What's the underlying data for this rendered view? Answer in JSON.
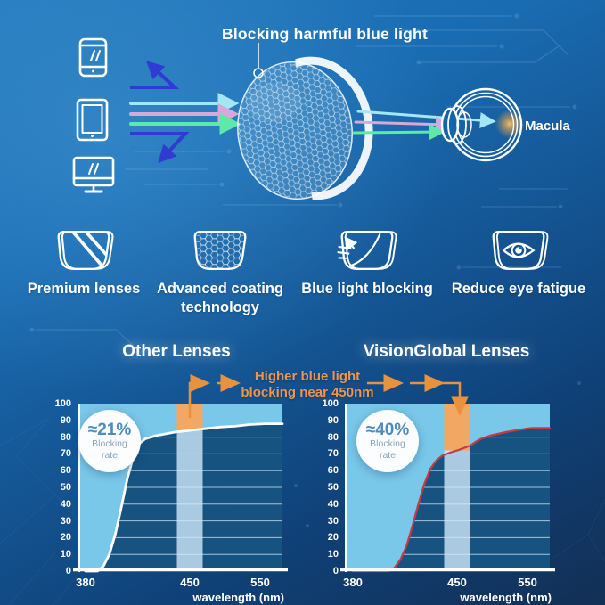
{
  "diagram": {
    "title": "Blocking harmful blue light",
    "macula_label": "Macula",
    "device_icons": [
      "smartphone-icon",
      "tablet-icon",
      "monitor-icon"
    ],
    "lens_icon": "coated-lens-icon",
    "eye_icon": "eyeball-cross-section-icon"
  },
  "features": [
    {
      "icon": "premium-lens-icon",
      "label": "Premium lenses"
    },
    {
      "icon": "honeycomb-coating-lens-icon",
      "label": "Advanced coating",
      "label2": "technology"
    },
    {
      "icon": "blue-light-blocking-lens-icon",
      "label": "Blue light blocking"
    },
    {
      "icon": "eye-in-lens-icon",
      "label": "Reduce eye fatigue"
    }
  ],
  "comparison": {
    "annotation_line1": "Higher blue light",
    "annotation_line2": "blocking near 450nm"
  },
  "chart_data": [
    {
      "type": "area",
      "title": "Other Lenses",
      "badge": {
        "value": "≈21%",
        "sub1": "Blocking",
        "sub2": "rate"
      },
      "xlabel": "wavelength (nm)",
      "x_ticks": [
        "380",
        "450",
        "550"
      ],
      "y_ticks": [
        0,
        10,
        20,
        30,
        40,
        50,
        60,
        70,
        80,
        90,
        100
      ],
      "ylim": [
        0,
        100
      ],
      "xlim_nm": [
        380,
        550
      ],
      "grid": "horizontal",
      "curve_color": "#ffffff",
      "band": {
        "center_nm": 450,
        "width_nm": 18
      },
      "blocking_rate_percent": 21,
      "points": [
        [
          380,
          0
        ],
        [
          388,
          0
        ],
        [
          392,
          3
        ],
        [
          396,
          10
        ],
        [
          400,
          22
        ],
        [
          404,
          38
        ],
        [
          408,
          55
        ],
        [
          412,
          68
        ],
        [
          416,
          76
        ],
        [
          420,
          79
        ],
        [
          428,
          81
        ],
        [
          440,
          83
        ],
        [
          450,
          84
        ],
        [
          470,
          85
        ],
        [
          490,
          86
        ],
        [
          510,
          86.5
        ],
        [
          530,
          87.5
        ],
        [
          550,
          88
        ]
      ]
    },
    {
      "type": "area",
      "title": "VisionGlobal Lenses",
      "badge": {
        "value": "≈40%",
        "sub1": "Blocking",
        "sub2": "rate"
      },
      "xlabel": "wavelength (nm)",
      "x_ticks": [
        "380",
        "450",
        "550"
      ],
      "y_ticks": [
        0,
        10,
        20,
        30,
        40,
        50,
        60,
        70,
        80,
        90,
        100
      ],
      "ylim": [
        0,
        100
      ],
      "xlim_nm": [
        380,
        550
      ],
      "grid": "horizontal",
      "curve_color": "#c43b44",
      "band": {
        "center_nm": 450,
        "width_nm": 18
      },
      "blocking_rate_percent": 40,
      "points": [
        [
          380,
          0
        ],
        [
          404,
          0
        ],
        [
          408,
          2
        ],
        [
          412,
          7
        ],
        [
          416,
          15
        ],
        [
          420,
          27
        ],
        [
          424,
          40
        ],
        [
          428,
          52
        ],
        [
          432,
          61
        ],
        [
          436,
          66
        ],
        [
          440,
          69
        ],
        [
          446,
          71
        ],
        [
          450,
          72
        ],
        [
          456,
          73
        ],
        [
          462,
          74
        ],
        [
          468,
          75
        ],
        [
          474,
          77
        ],
        [
          482,
          79
        ],
        [
          495,
          81
        ],
        [
          515,
          83
        ],
        [
          535,
          84.5
        ],
        [
          550,
          85.5
        ]
      ]
    }
  ],
  "colors": {
    "accent_orange": "#f2a763",
    "annotation_orange": "#e8913f",
    "plot_light_blue": "#79c7e9",
    "plot_dark_blue": "#175381",
    "band_blue": "#cfe9fa",
    "gridline": "#e8f3fb",
    "ray_cyan": "#a5e6f5",
    "ray_pink": "#d8a8d8",
    "ray_green": "#5fe9a8",
    "ray_deep_blue": "#2f3bd1",
    "macula_glow": "#ffb44d"
  }
}
